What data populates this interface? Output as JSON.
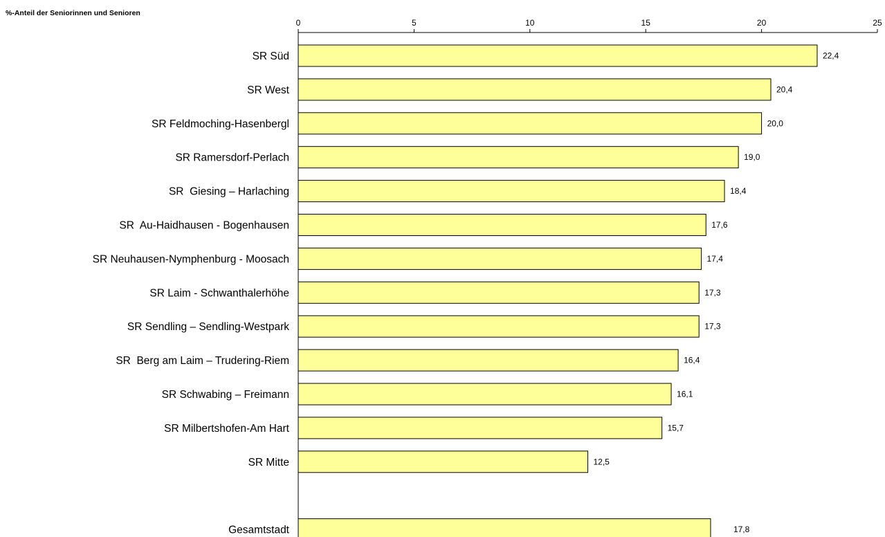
{
  "chart_data": {
    "type": "bar",
    "orientation": "horizontal",
    "title": "%-Anteil der Seniorinnen und Senioren",
    "xlabel": "",
    "ylabel": "",
    "xlim": [
      0,
      25
    ],
    "xticks": [
      0,
      5,
      10,
      15,
      20,
      25
    ],
    "axis_position": "top",
    "grid": false,
    "legend": "none",
    "bar_color": "#FFFF99",
    "categories": [
      "SR Süd",
      "SR West",
      "SR Feldmoching-Hasenbergl",
      "SR Ramersdorf-Perlach",
      "SR  Giesing – Harlaching",
      "SR  Au-Haidhausen - Bogenhausen",
      "SR Neuhausen-Nymphenburg - Moosach",
      "SR Laim - Schwanthalerhöhe",
      "SR Sendling – Sendling-Westpark",
      "SR  Berg am Laim – Trudering-Riem",
      "SR Schwabing – Freimann",
      "SR Milbertshofen-Am Hart",
      "SR Mitte",
      "",
      "Gesamtstadt"
    ],
    "values": [
      22.4,
      20.4,
      20.0,
      19.0,
      18.4,
      17.6,
      17.4,
      17.3,
      17.3,
      16.4,
      16.1,
      15.7,
      12.5,
      null,
      17.8
    ],
    "value_labels": [
      "22,4",
      "20,4",
      "20,0",
      "19,0",
      "18,4",
      "17,6",
      "17,4",
      "17,3",
      "17,3",
      "16,4",
      "16,1",
      "15,7",
      "12,5",
      "",
      "17,8"
    ]
  }
}
